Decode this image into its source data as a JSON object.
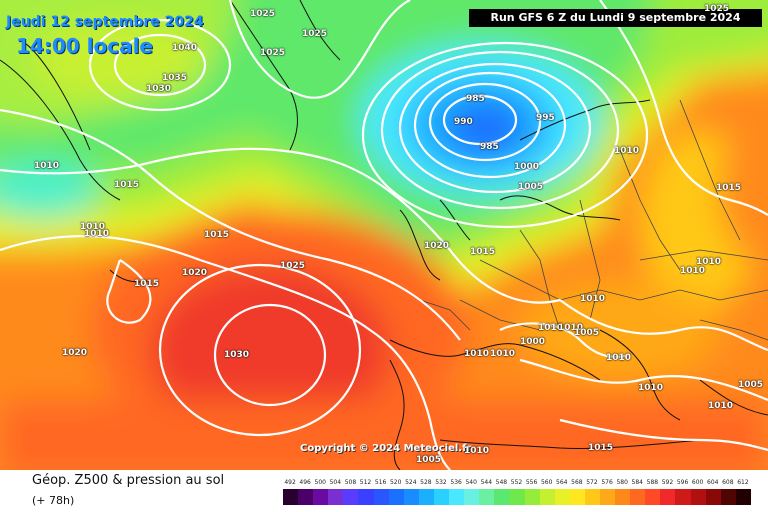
{
  "header": {
    "date": "Jeudi 12 septembre 2024",
    "time": "14:00 locale",
    "run": "Run GFS 6 Z du Lundi 9 septembre 2024"
  },
  "copyright": "Copyright © 2024 Meteociel.fr",
  "legend": {
    "title": "Géop. Z500 & pression au sol",
    "subtitle": "(+ 78h)",
    "scale_values": [
      "492",
      "496",
      "500",
      "504",
      "508",
      "512",
      "516",
      "520",
      "524",
      "528",
      "532",
      "536",
      "540",
      "544",
      "548",
      "552",
      "556",
      "560",
      "564",
      "568",
      "572",
      "576",
      "580",
      "584",
      "588",
      "592",
      "596",
      "600",
      "604",
      "608",
      "612"
    ],
    "scale_colors": [
      "#2a0030",
      "#4a0066",
      "#6a0aa0",
      "#7a2fd0",
      "#5a3cff",
      "#3a40ff",
      "#2a55ff",
      "#1a70ff",
      "#1a8cff",
      "#1ab0ff",
      "#2ad0ff",
      "#4ae8ff",
      "#6af0e0",
      "#6af0a0",
      "#5ae870",
      "#6ee84a",
      "#96ec3a",
      "#c4f030",
      "#e8f028",
      "#ffe820",
      "#ffc818",
      "#ffa818",
      "#ff8818",
      "#ff6820",
      "#ff4a26",
      "#f02a2a",
      "#d01a1a",
      "#b01010",
      "#8a0808",
      "#500404",
      "#200000"
    ]
  },
  "pressure_labels": [
    {
      "text": "1025"
    },
    {
      "text": "1025"
    },
    {
      "text": "1040"
    },
    {
      "text": "1025"
    },
    {
      "text": "1035"
    },
    {
      "text": "1030"
    },
    {
      "text": "985"
    },
    {
      "text": "990"
    },
    {
      "text": "995"
    },
    {
      "text": "985"
    },
    {
      "text": "1000"
    },
    {
      "text": "1005"
    },
    {
      "text": "1010"
    },
    {
      "text": "1015"
    },
    {
      "text": "1010"
    },
    {
      "text": "1010"
    },
    {
      "text": "1015"
    },
    {
      "text": "1020"
    },
    {
      "text": "1015"
    },
    {
      "text": "1025"
    },
    {
      "text": "1020"
    },
    {
      "text": "1015"
    },
    {
      "text": "1030"
    },
    {
      "text": "1020"
    },
    {
      "text": "1010"
    },
    {
      "text": "1010"
    },
    {
      "text": "1010"
    },
    {
      "text": "1000"
    },
    {
      "text": "1010"
    },
    {
      "text": "1010"
    },
    {
      "text": "1005"
    },
    {
      "text": "1010"
    },
    {
      "text": "1010"
    },
    {
      "text": "1010"
    },
    {
      "text": "1010"
    },
    {
      "text": "1005"
    },
    {
      "text": "1010"
    },
    {
      "text": "1015"
    },
    {
      "text": "1005"
    },
    {
      "text": "1010"
    },
    {
      "text": "1025"
    },
    {
      "text": "1015"
    },
    {
      "text": "1010"
    }
  ]
}
